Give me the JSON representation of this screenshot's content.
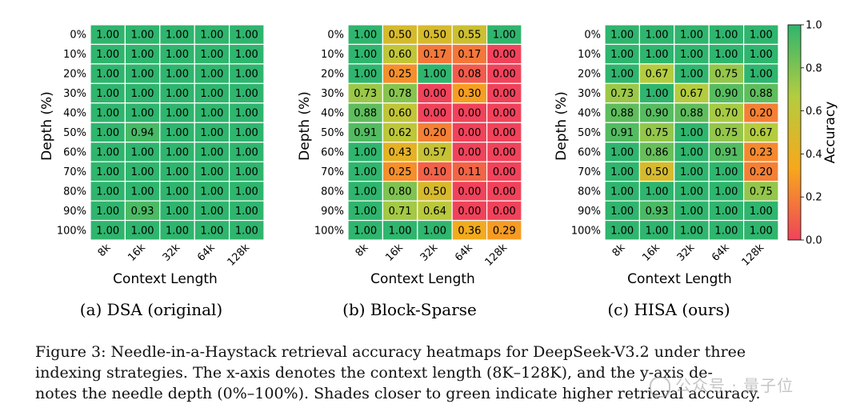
{
  "chart_data": [
    {
      "type": "heatmap",
      "subcaption": "(a) DSA (original)",
      "xlabel": "Context Length",
      "ylabel": "Depth (%)",
      "x_categories": [
        "8K",
        "16K",
        "32K",
        "64K",
        "128K"
      ],
      "y_categories": [
        "0%",
        "10%",
        "20%",
        "30%",
        "40%",
        "50%",
        "60%",
        "70%",
        "80%",
        "90%",
        "100%"
      ],
      "values": [
        [
          1.0,
          1.0,
          1.0,
          1.0,
          1.0
        ],
        [
          1.0,
          1.0,
          1.0,
          1.0,
          1.0
        ],
        [
          1.0,
          1.0,
          1.0,
          1.0,
          1.0
        ],
        [
          1.0,
          1.0,
          1.0,
          1.0,
          1.0
        ],
        [
          1.0,
          1.0,
          1.0,
          1.0,
          1.0
        ],
        [
          1.0,
          0.94,
          1.0,
          1.0,
          1.0
        ],
        [
          1.0,
          1.0,
          1.0,
          1.0,
          1.0
        ],
        [
          1.0,
          1.0,
          1.0,
          1.0,
          1.0
        ],
        [
          1.0,
          1.0,
          1.0,
          1.0,
          1.0
        ],
        [
          1.0,
          0.93,
          1.0,
          1.0,
          1.0
        ],
        [
          1.0,
          1.0,
          1.0,
          1.0,
          1.0
        ]
      ]
    },
    {
      "type": "heatmap",
      "subcaption": "(b) Block-Sparse",
      "xlabel": "Context Length",
      "ylabel": "Depth (%)",
      "x_categories": [
        "8K",
        "16K",
        "32K",
        "64K",
        "128K"
      ],
      "y_categories": [
        "0%",
        "10%",
        "20%",
        "30%",
        "40%",
        "50%",
        "60%",
        "70%",
        "80%",
        "90%",
        "100%"
      ],
      "values": [
        [
          1.0,
          0.5,
          0.5,
          0.55,
          1.0
        ],
        [
          1.0,
          0.6,
          0.17,
          0.17,
          0.0
        ],
        [
          1.0,
          0.25,
          1.0,
          0.08,
          0.0
        ],
        [
          0.73,
          0.78,
          0.0,
          0.3,
          0.0
        ],
        [
          0.88,
          0.6,
          0.0,
          0.0,
          0.0
        ],
        [
          0.91,
          0.62,
          0.2,
          0.0,
          0.0
        ],
        [
          1.0,
          0.43,
          0.57,
          0.0,
          0.0
        ],
        [
          1.0,
          0.25,
          0.1,
          0.11,
          0.0
        ],
        [
          1.0,
          0.8,
          0.5,
          0.0,
          0.0
        ],
        [
          1.0,
          0.71,
          0.64,
          0.0,
          0.0
        ],
        [
          1.0,
          1.0,
          1.0,
          0.36,
          0.29
        ]
      ]
    },
    {
      "type": "heatmap",
      "subcaption": "(c) HISA (ours)",
      "xlabel": "Context Length",
      "ylabel": "Depth (%)",
      "x_categories": [
        "8K",
        "16K",
        "32K",
        "64K",
        "128K"
      ],
      "y_categories": [
        "0%",
        "10%",
        "20%",
        "30%",
        "40%",
        "50%",
        "60%",
        "70%",
        "80%",
        "90%",
        "100%"
      ],
      "values": [
        [
          1.0,
          1.0,
          1.0,
          1.0,
          1.0
        ],
        [
          1.0,
          1.0,
          1.0,
          1.0,
          1.0
        ],
        [
          1.0,
          0.67,
          1.0,
          0.75,
          1.0
        ],
        [
          0.73,
          1.0,
          0.67,
          0.9,
          0.88
        ],
        [
          0.88,
          0.9,
          0.88,
          0.7,
          0.2
        ],
        [
          0.91,
          0.75,
          1.0,
          0.75,
          0.67
        ],
        [
          1.0,
          0.86,
          1.0,
          0.91,
          0.23
        ],
        [
          1.0,
          0.5,
          1.0,
          1.0,
          0.2
        ],
        [
          1.0,
          1.0,
          1.0,
          1.0,
          0.75
        ],
        [
          1.0,
          0.93,
          1.0,
          1.0,
          1.0
        ],
        [
          1.0,
          1.0,
          1.0,
          1.0,
          1.0
        ]
      ]
    }
  ],
  "colorbar": {
    "label": "Accuracy",
    "ticks": [
      "0.0",
      "0.2",
      "0.4",
      "0.6",
      "0.8",
      "1.0"
    ],
    "range": [
      0.0,
      1.0
    ],
    "colors": [
      "#f0435b",
      "#f7a81b",
      "#b4cc3f",
      "#2fb56e"
    ]
  },
  "caption": {
    "line1": "Figure 3: Needle-in-a-Haystack retrieval accuracy heatmaps for DeepSeek-V3.2 under three",
    "line2": "indexing strategies. The x-axis denotes the context length (8K–128K), and the y-axis de-",
    "line3": "notes the needle depth (0%–100%). Shades closer to green indicate higher retrieval accuracy."
  },
  "watermark": "公众号 · 量子位"
}
